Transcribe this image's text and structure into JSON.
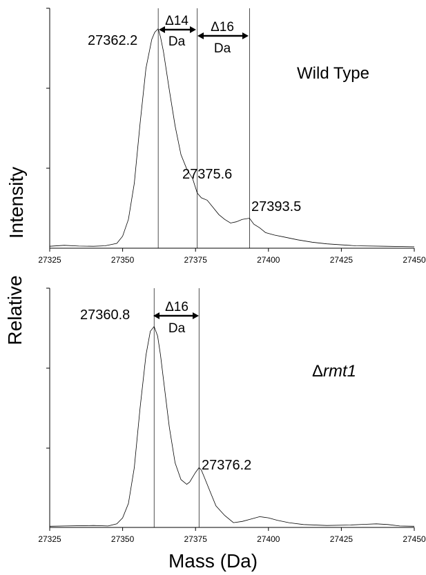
{
  "chart_data": [
    {
      "type": "line",
      "panel_label": "Wild Type",
      "xlim": [
        27325,
        27450
      ],
      "ylim": [
        0,
        100
      ],
      "x_ticks": [
        "27325",
        "27350",
        "27375",
        "27400",
        "27425",
        "27450"
      ],
      "series": [
        {
          "x": [
            27325,
            27330,
            27335,
            27340,
            27344,
            27348,
            27350,
            27352,
            27354,
            27356,
            27358,
            27360,
            27361,
            27362.2,
            27363,
            27364,
            27366,
            27368,
            27370,
            27372,
            27374,
            27375.6,
            27377,
            27379,
            27381,
            27383,
            27385,
            27387,
            27389,
            27391,
            27393.5,
            27395,
            27397,
            27399,
            27402,
            27406,
            27410,
            27415,
            27420,
            27430,
            27440,
            27450
          ],
          "y": [
            0.8,
            1.2,
            0.9,
            0.8,
            1.0,
            2.0,
            5.0,
            12.0,
            27.0,
            52.0,
            75.0,
            87.0,
            90.0,
            91.5,
            88.0,
            82.0,
            66.0,
            51.0,
            39.0,
            33.0,
            29.0,
            23.0,
            21.0,
            20.0,
            17.0,
            14.0,
            12.0,
            10.5,
            11.0,
            12.0,
            12.5,
            10.0,
            8.5,
            6.5,
            5.5,
            4.5,
            3.5,
            2.5,
            1.8,
            1.0,
            0.8,
            0.6
          ]
        }
      ],
      "vlines": [
        27362.2,
        27375.6,
        27393.5
      ],
      "peak_labels": [
        "27362.2",
        "27375.6",
        "27393.5"
      ],
      "annotations": [
        "Δ14",
        "Da",
        "Δ16",
        "Da"
      ]
    },
    {
      "type": "line",
      "panel_label": "Δrmt1",
      "panel_label_prefix": "Δ",
      "panel_label_italic": "rmt1",
      "xlim": [
        27325,
        27450
      ],
      "ylim": [
        0,
        100
      ],
      "x_ticks": [
        "27325",
        "27350",
        "27375",
        "27400",
        "27425",
        "27450"
      ],
      "series": [
        {
          "x": [
            27325,
            27330,
            27340,
            27345,
            27348,
            27350,
            27352,
            27354,
            27356,
            27358,
            27359.5,
            27360.8,
            27362,
            27363,
            27364,
            27366,
            27368,
            27370,
            27372,
            27373,
            27374,
            27375,
            27376.2,
            27377,
            27378,
            27380,
            27382,
            27385,
            27388,
            27391,
            27394,
            27397,
            27400,
            27403,
            27407,
            27412,
            27420,
            27428,
            27433,
            27437,
            27441,
            27445,
            27450
          ],
          "y": [
            0.5,
            0.6,
            0.8,
            0.6,
            1.5,
            4.0,
            10.0,
            25.0,
            50.0,
            72.0,
            82.0,
            84.0,
            80.0,
            72.0,
            62.0,
            42.0,
            27.0,
            20.0,
            18.0,
            19.0,
            21.0,
            23.0,
            25.0,
            24.0,
            21.0,
            15.0,
            9.0,
            5.0,
            2.0,
            2.5,
            3.5,
            4.5,
            4.0,
            3.0,
            2.0,
            1.2,
            0.8,
            1.0,
            1.3,
            1.5,
            1.2,
            0.6,
            0.5
          ]
        }
      ],
      "vlines": [
        27360.8,
        27376.2
      ],
      "peak_labels": [
        "27360.8",
        "27376.2"
      ],
      "annotations": [
        "Δ16",
        "Da"
      ]
    }
  ],
  "ylabel_words": [
    "Intensity",
    "Relative"
  ],
  "xlabel": "Mass (Da)"
}
